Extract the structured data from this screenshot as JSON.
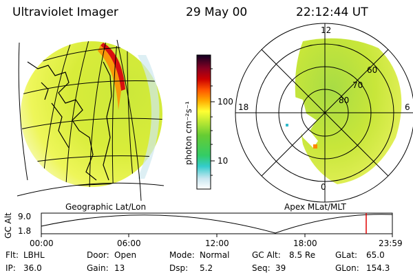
{
  "header": {
    "instrument": "Ultraviolet Imager",
    "date": "29 May 00",
    "time": "22:12:44 UT"
  },
  "colorbar": {
    "unit_label": "photon cm⁻²s⁻¹",
    "ticks": [
      "100",
      "10"
    ]
  },
  "geo_panel": {
    "label": "Geographic Lat/Lon"
  },
  "polar_panel": {
    "label": "Apex MLat/MLT",
    "mlt_labels": [
      "12",
      "18",
      "6",
      "0"
    ],
    "lat_labels": [
      "60",
      "70",
      "80"
    ]
  },
  "orbit_plot": {
    "ylabel": "GC Alt",
    "yticks": [
      "9.0",
      "1.8"
    ],
    "xticks": [
      "00:00",
      "06:00",
      "12:00",
      "18:00",
      "23:59"
    ],
    "marker_color": "#e00000"
  },
  "footer": {
    "row1": [
      {
        "key": "Flt:",
        "value": "LBHL"
      },
      {
        "key": "Door:",
        "value": "Open"
      },
      {
        "key": "Mode:",
        "value": "Normal"
      },
      {
        "key": "GC Alt:",
        "value": "8.5 Re"
      },
      {
        "key": "GLat:",
        "value": "65.0"
      }
    ],
    "row2": [
      {
        "key": "IP:",
        "value": "36.0"
      },
      {
        "key": "Gain:",
        "value": "13"
      },
      {
        "key": "Dsp:",
        "value": "5.2"
      },
      {
        "key": "Seq:",
        "value": "39"
      },
      {
        "key": "GLon:",
        "value": "154.3"
      }
    ]
  }
}
